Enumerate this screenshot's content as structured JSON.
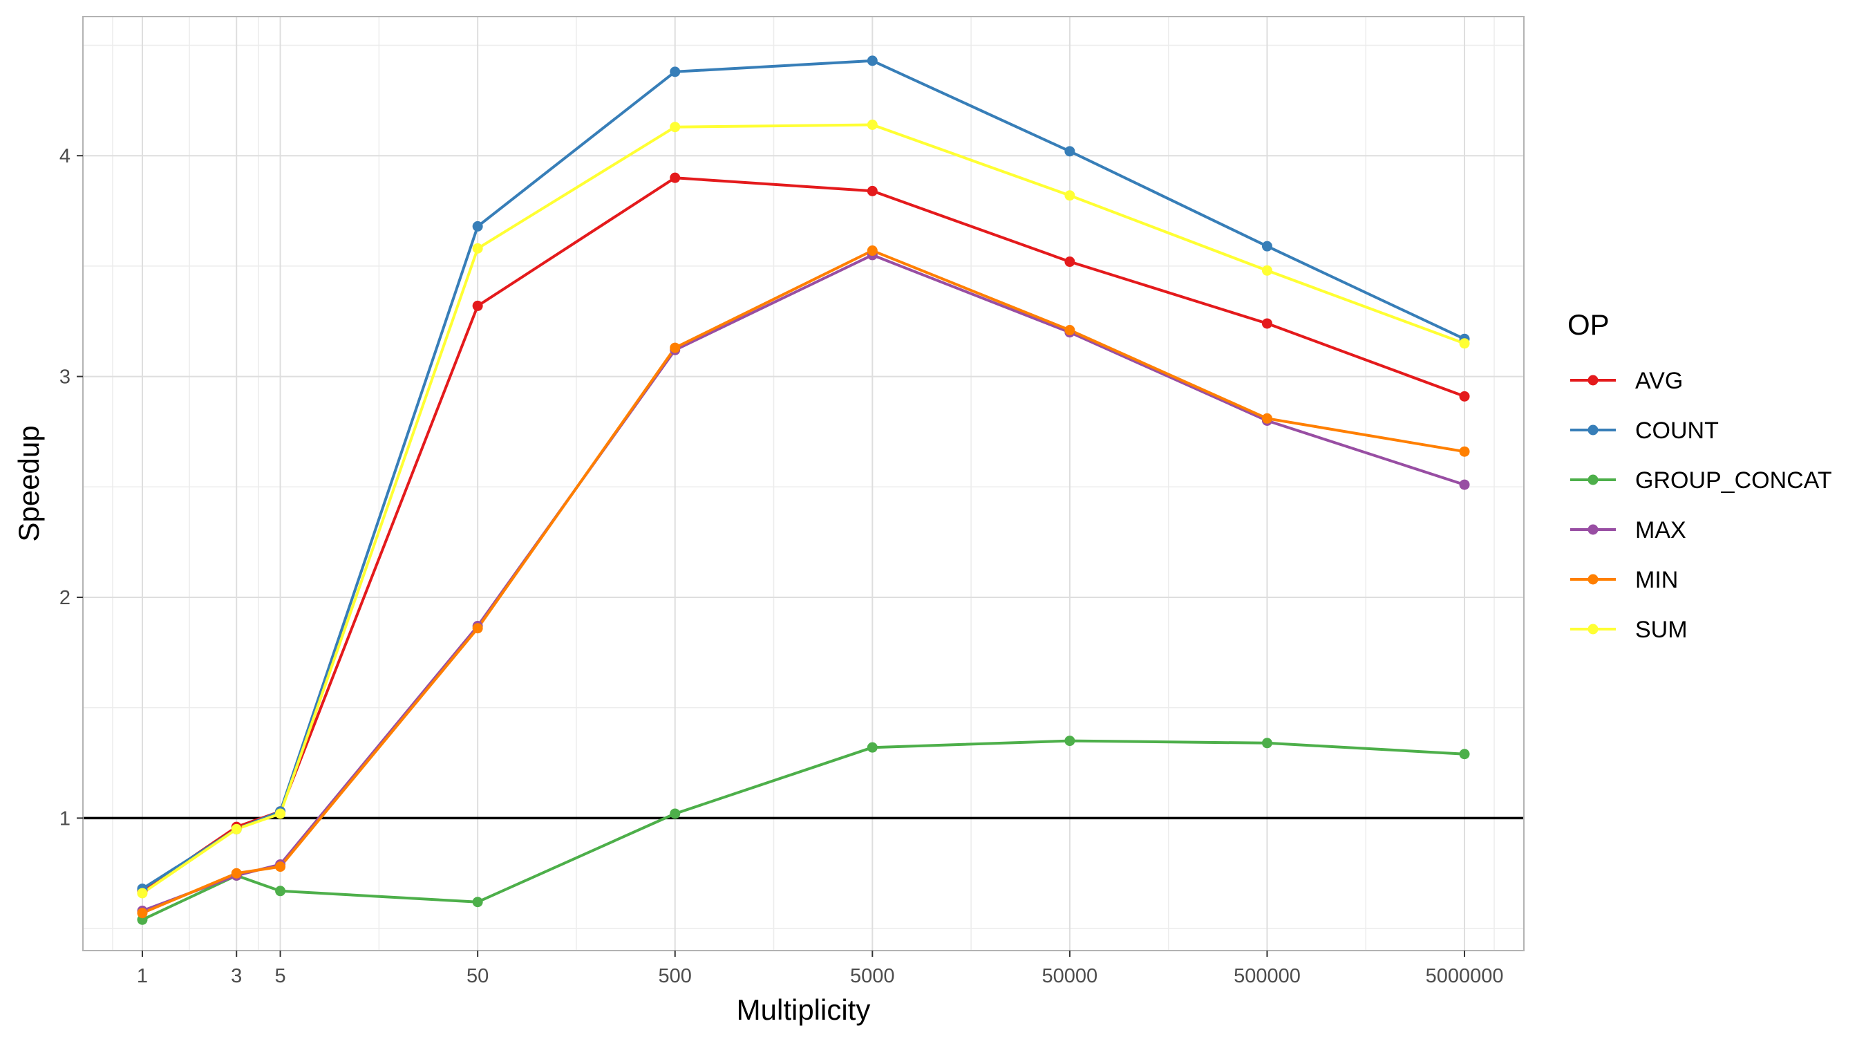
{
  "chart_data": {
    "type": "line",
    "xlabel": "Multiplicity",
    "ylabel": "Speedup",
    "x_scale": "log10",
    "x": [
      1,
      3,
      5,
      50,
      500,
      5000,
      50000,
      500000,
      5000000
    ],
    "x_tick_labels": [
      "1",
      "3",
      "5",
      "50",
      "500",
      "5000",
      "50000",
      "500000",
      "5000000"
    ],
    "xlim": [
      0.5,
      10000000
    ],
    "ylim": [
      0.4,
      4.63
    ],
    "y_ticks": [
      1,
      2,
      3,
      4
    ],
    "y_tick_labels": [
      "1",
      "2",
      "3",
      "4"
    ],
    "reference_line": {
      "y": 1,
      "color": "#000000"
    },
    "grid": true,
    "legend": {
      "title": "OP",
      "position": "right"
    },
    "series": [
      {
        "name": "AVG",
        "color": "#e41a1c",
        "values": [
          0.67,
          0.96,
          1.03,
          3.32,
          3.9,
          3.84,
          3.52,
          3.24,
          2.91
        ]
      },
      {
        "name": "COUNT",
        "color": "#377eb8",
        "values": [
          0.68,
          0.95,
          1.03,
          3.68,
          4.38,
          4.43,
          4.02,
          3.59,
          3.17
        ]
      },
      {
        "name": "GROUP_CONCAT",
        "color": "#4daf4a",
        "values": [
          0.54,
          0.74,
          0.67,
          0.62,
          1.02,
          1.32,
          1.35,
          1.34,
          1.29
        ]
      },
      {
        "name": "MAX",
        "color": "#984ea3",
        "values": [
          0.58,
          0.74,
          0.79,
          1.87,
          3.12,
          3.55,
          3.2,
          2.8,
          2.51
        ]
      },
      {
        "name": "MIN",
        "color": "#ff7f00",
        "values": [
          0.57,
          0.75,
          0.78,
          1.86,
          3.13,
          3.57,
          3.21,
          2.81,
          2.66
        ]
      },
      {
        "name": "SUM",
        "color": "#ffff33",
        "values": [
          0.66,
          0.95,
          1.02,
          3.58,
          4.13,
          4.14,
          3.82,
          3.48,
          3.15
        ]
      }
    ]
  }
}
